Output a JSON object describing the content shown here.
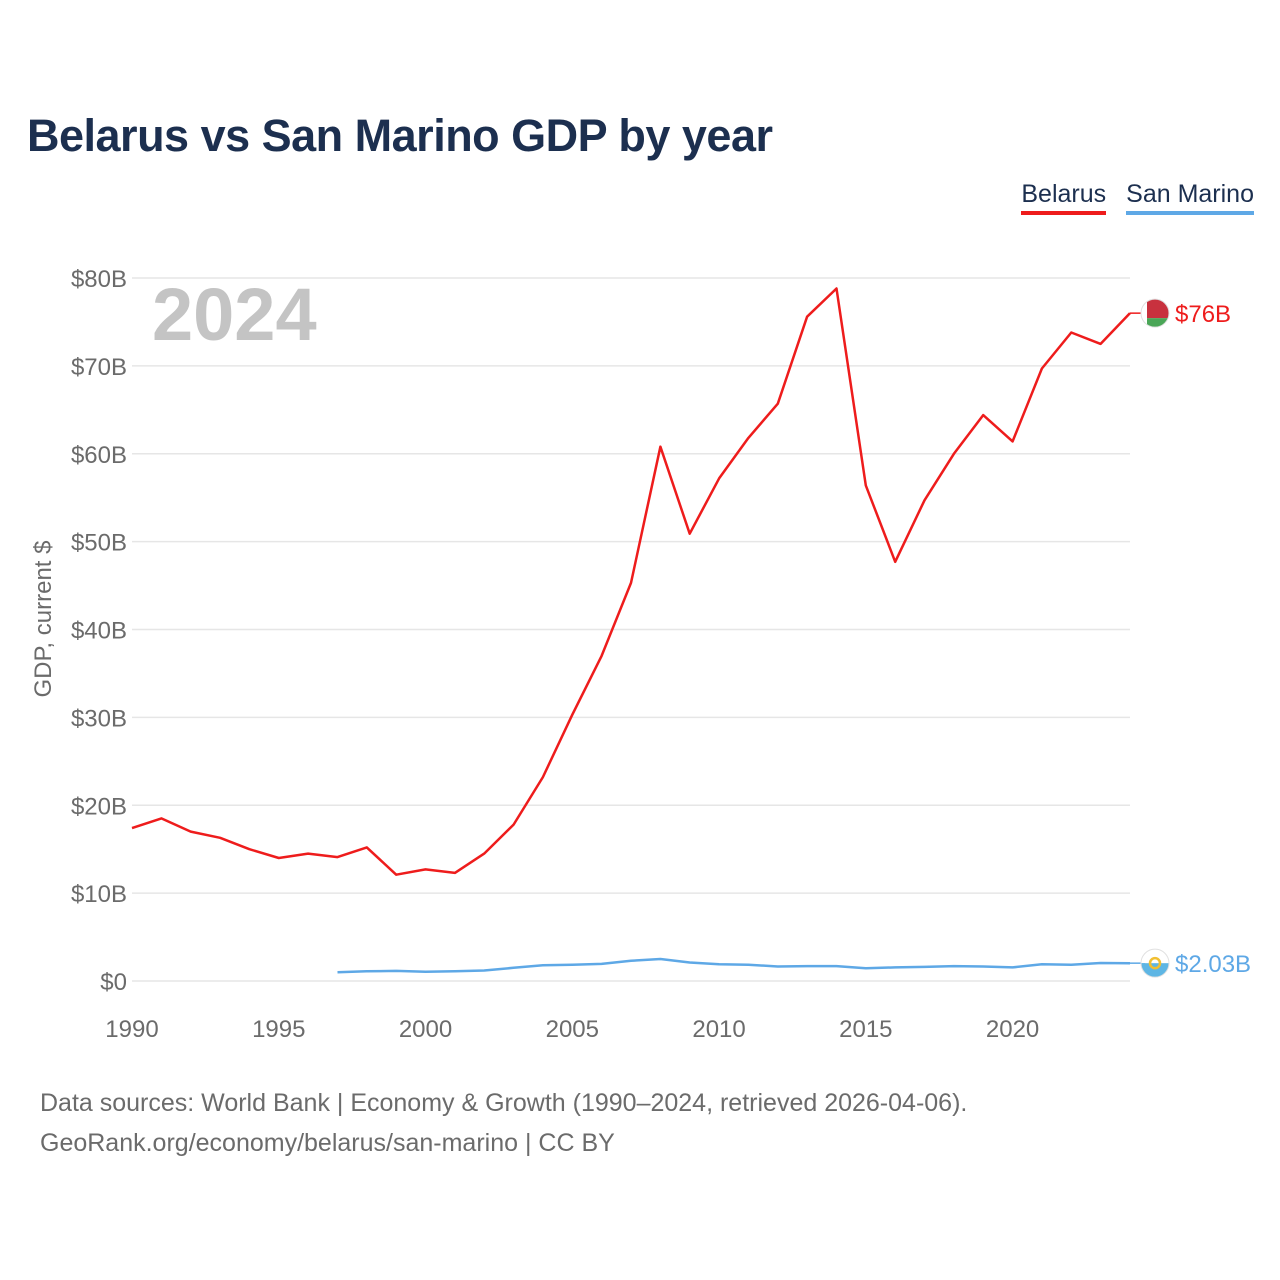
{
  "title": "Belarus vs San Marino GDP by year",
  "legend": [
    {
      "label": "Belarus",
      "color": "#ee1c1c"
    },
    {
      "label": "San Marino",
      "color": "#5ea8e6"
    }
  ],
  "footer": {
    "line1": "Data sources: World Bank | Economy & Growth (1990–2024, retrieved 2026-04-06).",
    "line2": "GeoRank.org/economy/belarus/san-marino | CC BY"
  },
  "chart_data": {
    "type": "line",
    "year_label": "2024",
    "ylabel": "GDP, current $",
    "xlim": [
      1990,
      2024
    ],
    "ylim": [
      0,
      80
    ],
    "x_ticks": [
      1990,
      1995,
      2000,
      2005,
      2010,
      2015,
      2020
    ],
    "x_tick_labels": [
      "1990",
      "1995",
      "2000",
      "2005",
      "2010",
      "2015",
      "2020"
    ],
    "y_ticks": [
      0,
      10,
      20,
      30,
      40,
      50,
      60,
      70,
      80
    ],
    "y_tick_labels": [
      "$0",
      "$10B",
      "$20B",
      "$30B",
      "$40B",
      "$50B",
      "$60B",
      "$70B",
      "$80B"
    ],
    "series": [
      {
        "name": "Belarus",
        "color": "#ee1c1c",
        "end_label": "$76B",
        "x": [
          1990,
          1991,
          1992,
          1993,
          1994,
          1995,
          1996,
          1997,
          1998,
          1999,
          2000,
          2001,
          2002,
          2003,
          2004,
          2005,
          2006,
          2007,
          2008,
          2009,
          2010,
          2011,
          2012,
          2013,
          2014,
          2015,
          2016,
          2017,
          2018,
          2019,
          2020,
          2021,
          2022,
          2023,
          2024
        ],
        "values": [
          17.4,
          18.5,
          17.0,
          16.3,
          15.0,
          14.0,
          14.5,
          14.1,
          15.2,
          12.1,
          12.7,
          12.3,
          14.5,
          17.8,
          23.2,
          30.3,
          37.0,
          45.3,
          60.8,
          50.9,
          57.2,
          61.8,
          65.7,
          75.6,
          78.8,
          56.4,
          47.7,
          54.7,
          60.0,
          64.4,
          61.4,
          69.7,
          73.8,
          72.5,
          76.0
        ]
      },
      {
        "name": "San Marino",
        "color": "#5ea8e6",
        "end_label": "$2.03B",
        "x": [
          1997,
          1998,
          1999,
          2000,
          2001,
          2002,
          2003,
          2004,
          2005,
          2006,
          2007,
          2008,
          2009,
          2010,
          2011,
          2012,
          2013,
          2014,
          2015,
          2016,
          2017,
          2018,
          2019,
          2020,
          2021,
          2022,
          2023,
          2024
        ],
        "values": [
          1.0,
          1.1,
          1.15,
          1.05,
          1.1,
          1.2,
          1.5,
          1.8,
          1.85,
          1.95,
          2.3,
          2.5,
          2.1,
          1.9,
          1.85,
          1.65,
          1.7,
          1.7,
          1.45,
          1.55,
          1.6,
          1.7,
          1.65,
          1.55,
          1.9,
          1.85,
          2.05,
          2.03
        ]
      }
    ]
  },
  "flags": [
    {
      "name": "belarus-flag",
      "colors": [
        "#c8313e",
        "#4aa657",
        "#ffffff"
      ]
    },
    {
      "name": "san-marino-flag",
      "colors": [
        "#ffffff",
        "#5eb6e4",
        "#f1bf31"
      ]
    }
  ]
}
